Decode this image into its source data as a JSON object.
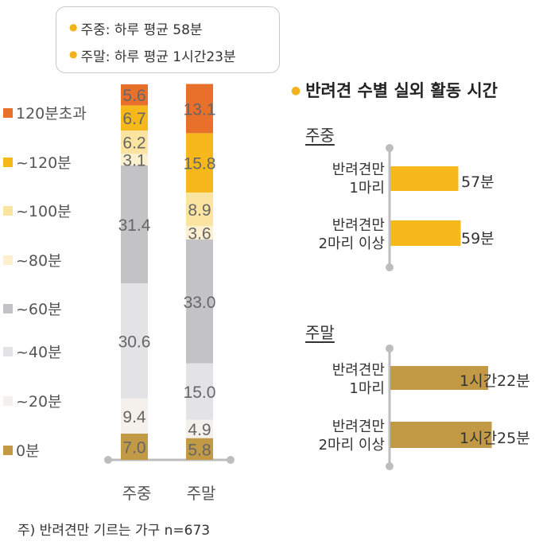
{
  "info": {
    "weekday": "주중: 하루 평균 58분",
    "weekend": "주말: 하루 평균 1시간23분"
  },
  "legend": [
    {
      "label": "120분초과",
      "color": "#e8702a"
    },
    {
      "label": "~120분",
      "color": "#f6b81a"
    },
    {
      "label": "~100분",
      "color": "#fbe3a0"
    },
    {
      "label": "~80분",
      "color": "#fdf0cf"
    },
    {
      "label": "~60분",
      "color": "#c3c3c5"
    },
    {
      "label": "~40분",
      "color": "#e3e3e5"
    },
    {
      "label": "~20분",
      "color": "#f4f1ec"
    },
    {
      "label": "0분",
      "color": "#c29a45"
    }
  ],
  "chart_data": [
    {
      "type": "bar",
      "stacked": true,
      "categories": [
        "주중",
        "주말"
      ],
      "series": [
        {
          "name": "0분",
          "values": [
            7.0,
            5.8
          ],
          "color": "#c29a45"
        },
        {
          "name": "~20분",
          "values": [
            9.4,
            4.9
          ],
          "color": "#f4f1ec"
        },
        {
          "name": "~40분",
          "values": [
            30.6,
            15.0
          ],
          "color": "#e3e3e5"
        },
        {
          "name": "~60분",
          "values": [
            31.4,
            33.0
          ],
          "color": "#c3c3c5"
        },
        {
          "name": "~80분",
          "values": [
            3.1,
            3.6
          ],
          "color": "#fdf0cf"
        },
        {
          "name": "~100분",
          "values": [
            6.2,
            8.9
          ],
          "color": "#fbe3a0"
        },
        {
          "name": "~120분",
          "values": [
            6.7,
            15.8
          ],
          "color": "#f6b81a"
        },
        {
          "name": "120분초과",
          "values": [
            5.6,
            13.1
          ],
          "color": "#e8702a"
        }
      ],
      "ylim": [
        0,
        100
      ]
    },
    {
      "type": "bar",
      "orientation": "horizontal",
      "title": "반려견 수별 실외 활동 시간",
      "groups": [
        {
          "name": "주중",
          "color": "#f6b81a",
          "bars": [
            {
              "label": [
                "반려견만",
                "1마리"
              ],
              "minutes": 57,
              "value_label": "57분"
            },
            {
              "label": [
                "반려견만",
                "2마리 이상"
              ],
              "minutes": 59,
              "value_label": "59분"
            }
          ]
        },
        {
          "name": "주말",
          "color": "#c29a45",
          "bars": [
            {
              "label": [
                "반려견만",
                "1마리"
              ],
              "minutes": 82,
              "value_label": "1시간22분"
            },
            {
              "label": [
                "반려견만",
                "2마리 이상"
              ],
              "minutes": 85,
              "value_label": "1시간25분"
            }
          ]
        }
      ]
    }
  ],
  "footnote": "주) 반려견만 기르는 가구 n=673"
}
